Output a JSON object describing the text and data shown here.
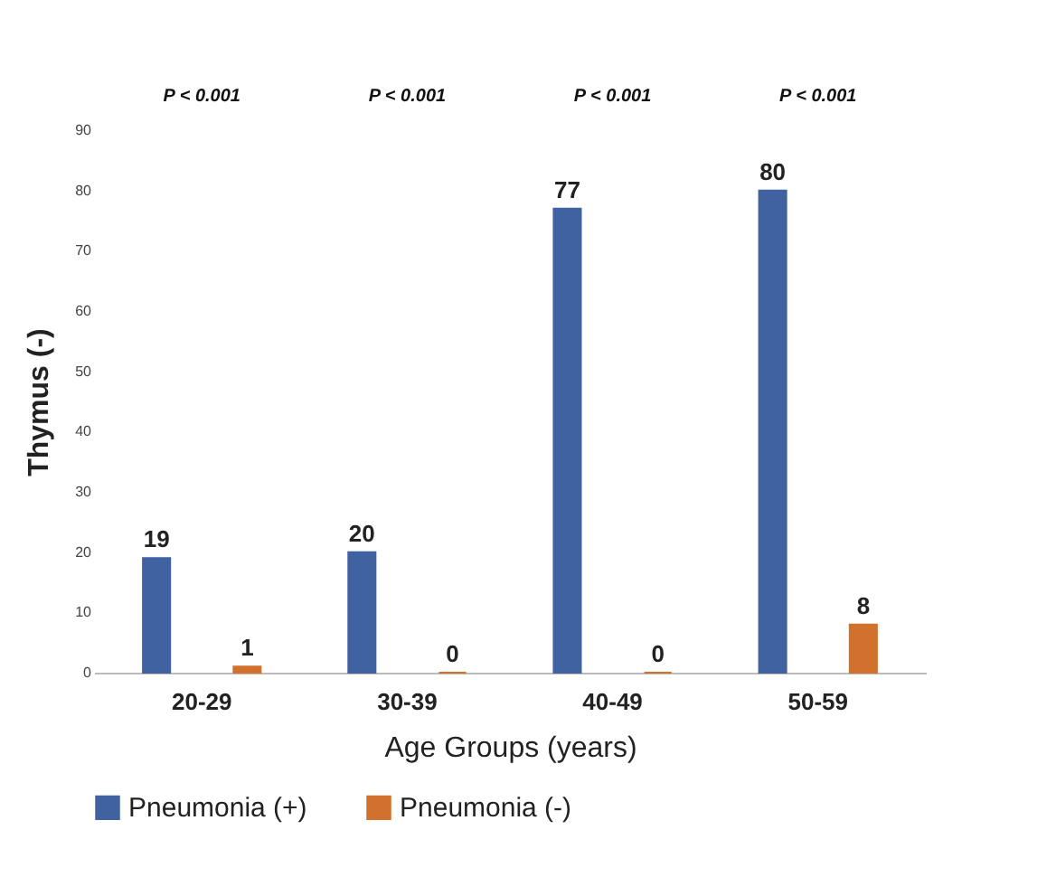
{
  "chart_data": {
    "type": "bar",
    "xlabel": "Age Groups (years)",
    "ylabel": "Thymus (-)",
    "categories": [
      "20-29",
      "30-39",
      "40-49",
      "50-59"
    ],
    "series": [
      {
        "name": "Pneumonia (+)",
        "color": "#4062a0",
        "values": [
          19,
          20,
          77,
          80
        ]
      },
      {
        "name": "Pneumonia (-)",
        "color": "#d2702e",
        "values": [
          1,
          0,
          0,
          8
        ]
      }
    ],
    "ylim": [
      0,
      90
    ],
    "yticks": [
      0,
      10,
      20,
      30,
      40,
      50,
      60,
      70,
      80,
      90
    ],
    "grid": false,
    "legend": "bottom",
    "data_labels": true,
    "annotations": [
      "P < 0.001",
      "P < 0.001",
      "P < 0.001",
      "P < 0.001"
    ]
  }
}
